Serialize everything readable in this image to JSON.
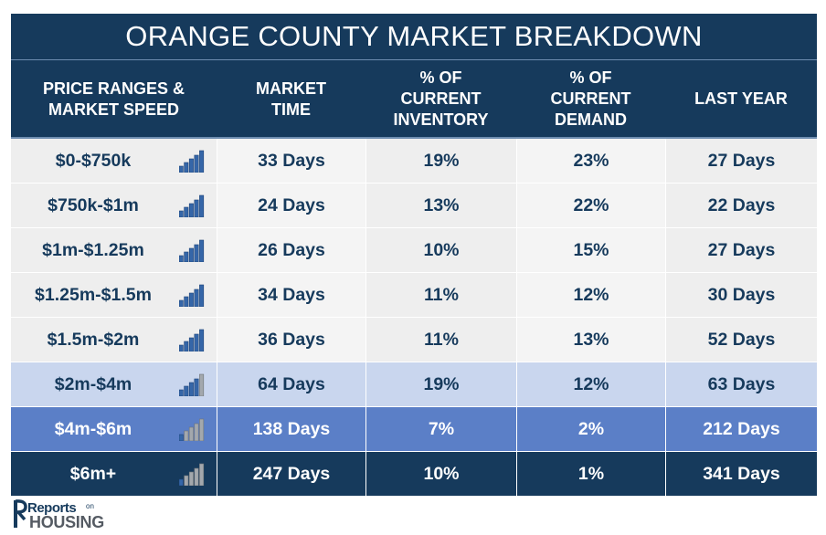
{
  "table": {
    "title": "ORANGE COUNTY MARKET BREAKDOWN",
    "headers": [
      "PRICE RANGES &\nMARKET SPEED",
      "MARKET\nTIME",
      "% OF\nCURRENT\nINVENTORY",
      "% OF\nCURRENT\nDEMAND",
      "LAST YEAR"
    ],
    "rows": [
      {
        "range": "$0-$750k",
        "speed_level": 5,
        "market_time": "33 Days",
        "inventory": "19%",
        "demand": "23%",
        "last_year": "27 Days",
        "style": "light"
      },
      {
        "range": "$750k-$1m",
        "speed_level": 5,
        "market_time": "24 Days",
        "inventory": "13%",
        "demand": "22%",
        "last_year": "22 Days",
        "style": "light"
      },
      {
        "range": "$1m-$1.25m",
        "speed_level": 5,
        "market_time": "26 Days",
        "inventory": "10%",
        "demand": "15%",
        "last_year": "27 Days",
        "style": "light"
      },
      {
        "range": "$1.25m-$1.5m",
        "speed_level": 5,
        "market_time": "34 Days",
        "inventory": "11%",
        "demand": "12%",
        "last_year": "30 Days",
        "style": "light"
      },
      {
        "range": "$1.5m-$2m",
        "speed_level": 5,
        "market_time": "36 Days",
        "inventory": "11%",
        "demand": "13%",
        "last_year": "52 Days",
        "style": "light"
      },
      {
        "range": "$2m-$4m",
        "speed_level": 4,
        "market_time": "64 Days",
        "inventory": "19%",
        "demand": "12%",
        "last_year": "63 Days",
        "style": "pale-blue"
      },
      {
        "range": "$4m-$6m",
        "speed_level": 1,
        "market_time": "138 Days",
        "inventory": "7%",
        "demand": "2%",
        "last_year": "212 Days",
        "style": "mid-blue"
      },
      {
        "range": "$6m+",
        "speed_level": 1,
        "market_time": "247 Days",
        "inventory": "10%",
        "demand": "1%",
        "last_year": "341 Days",
        "style": "dark"
      }
    ]
  },
  "colors": {
    "navy": "#163a5c",
    "light_a": "#eeeeee",
    "light_b": "#f4f4f4",
    "pale_blue": "#c9d6ee",
    "mid_blue": "#5b7fc7",
    "dark": "#163a5c",
    "bar_active": "#3566a8",
    "bar_inactive": "#a3a8ad"
  },
  "logo": {
    "line1": "Reports",
    "line1_suffix": "on",
    "line2": "HOUSING"
  }
}
